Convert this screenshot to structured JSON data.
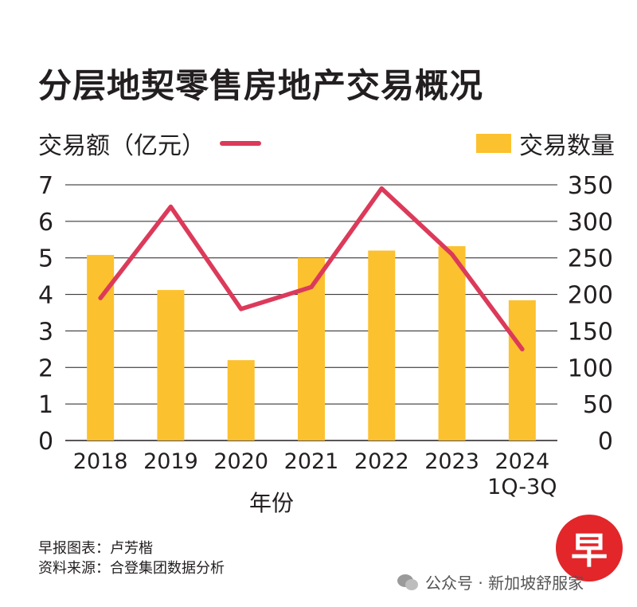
{
  "title": "分层地契零售房地产交易概况",
  "legend": {
    "line_label": "交易额（亿元）",
    "bar_label": "交易数量"
  },
  "colors": {
    "bar": "#fcc12f",
    "line": "#dc3a5a",
    "axis": "#231f20",
    "logo": "#e2262a"
  },
  "chart_data": {
    "type": "bar",
    "categories": [
      "2018",
      "2019",
      "2020",
      "2021",
      "2022",
      "2023",
      "2024\n1Q-3Q"
    ],
    "series": [
      {
        "name": "交易数量",
        "type": "bar",
        "axis": "right",
        "values": [
          254,
          206,
          110,
          250,
          260,
          266,
          192
        ]
      },
      {
        "name": "交易额（亿元）",
        "type": "line",
        "axis": "left",
        "values": [
          3.9,
          6.4,
          3.6,
          4.2,
          6.9,
          5.1,
          2.5
        ]
      }
    ],
    "xlabel": "年份",
    "y_left": {
      "lim": [
        0,
        7
      ],
      "ticks": [
        "0",
        "1",
        "2",
        "3",
        "4",
        "5",
        "6",
        "7"
      ]
    },
    "y_right": {
      "lim": [
        0,
        350
      ],
      "ticks": [
        "0",
        "50",
        "100",
        "150",
        "200",
        "250",
        "300",
        "350"
      ]
    },
    "grid": "horizontal"
  },
  "credits": {
    "chart_by": "早报图表：卢芳楷",
    "source": "资料来源：合登集团数据分析"
  },
  "logo_char": "早",
  "watermark": "公众号 · 新加坡舒服家"
}
